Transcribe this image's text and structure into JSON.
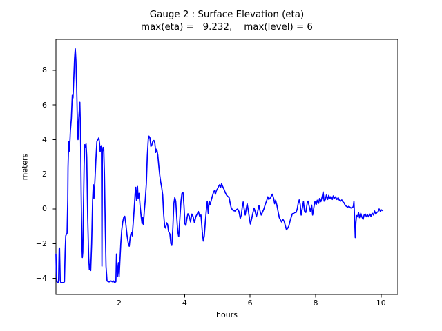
{
  "figure": {
    "title_line1": "Gauge 2 : Surface Elevation (eta)",
    "title_line2": "max(eta) =   9.232,    max(level) = 6",
    "xlabel": "hours",
    "ylabel": "meters"
  },
  "chart_data": {
    "type": "line",
    "title": "Gauge 2 : Surface Elevation (eta)",
    "subtitle": "max(eta) =   9.232,    max(level) = 6",
    "xlabel": "hours",
    "ylabel": "meters",
    "max_eta": 9.232,
    "max_level": 6,
    "line_color": "#0000ff",
    "line_width": 1.7,
    "background_color": "#ffffff",
    "grid": false,
    "legend": "none",
    "xlim": [
      0.07,
      10.51
    ],
    "ylim": [
      -4.93,
      9.78
    ],
    "xticks": [
      {
        "value": 2,
        "label": "2"
      },
      {
        "value": 4,
        "label": "4"
      },
      {
        "value": 6,
        "label": "6"
      },
      {
        "value": 8,
        "label": "8"
      },
      {
        "value": 10,
        "label": "10"
      }
    ],
    "yticks": [
      {
        "value": -4,
        "label": "−4"
      },
      {
        "value": -2,
        "label": "−2"
      },
      {
        "value": 0,
        "label": "0"
      },
      {
        "value": 2,
        "label": "2"
      },
      {
        "value": 4,
        "label": "4"
      },
      {
        "value": 6,
        "label": "6"
      },
      {
        "value": 8,
        "label": "8"
      }
    ],
    "points": [
      [
        0.07,
        -2.6
      ],
      [
        0.08,
        -3.6
      ],
      [
        0.1,
        -4.2
      ],
      [
        0.13,
        -4.25
      ],
      [
        0.15,
        -4.2
      ],
      [
        0.17,
        -2.3
      ],
      [
        0.18,
        -2.25
      ],
      [
        0.2,
        -4.1
      ],
      [
        0.22,
        -4.25
      ],
      [
        0.26,
        -4.25
      ],
      [
        0.3,
        -4.25
      ],
      [
        0.33,
        -4.2
      ],
      [
        0.35,
        -2.5
      ],
      [
        0.37,
        -1.55
      ],
      [
        0.39,
        -1.45
      ],
      [
        0.41,
        -1.4
      ],
      [
        0.43,
        0.5
      ],
      [
        0.44,
        2.4
      ],
      [
        0.46,
        3.9
      ],
      [
        0.47,
        3.3
      ],
      [
        0.49,
        3.6
      ],
      [
        0.51,
        4.5
      ],
      [
        0.54,
        5.2
      ],
      [
        0.57,
        6.55
      ],
      [
        0.59,
        6.4
      ],
      [
        0.62,
        7.8
      ],
      [
        0.64,
        8.7
      ],
      [
        0.66,
        9.232
      ],
      [
        0.68,
        8.6
      ],
      [
        0.7,
        7.2
      ],
      [
        0.71,
        6.5
      ],
      [
        0.73,
        4.5
      ],
      [
        0.745,
        4.0
      ],
      [
        0.76,
        5.0
      ],
      [
        0.78,
        5.6
      ],
      [
        0.8,
        6.15
      ],
      [
        0.82,
        4.5
      ],
      [
        0.84,
        1.0
      ],
      [
        0.86,
        -2.0
      ],
      [
        0.875,
        -2.8
      ],
      [
        0.89,
        -2.5
      ],
      [
        0.91,
        0.0
      ],
      [
        0.93,
        2.5
      ],
      [
        0.95,
        3.7
      ],
      [
        0.97,
        3.55
      ],
      [
        0.99,
        3.75
      ],
      [
        1.01,
        3.0
      ],
      [
        1.04,
        -0.5
      ],
      [
        1.07,
        -2.8
      ],
      [
        1.09,
        -3.5
      ],
      [
        1.11,
        -3.2
      ],
      [
        1.13,
        -3.55
      ],
      [
        1.16,
        -2.0
      ],
      [
        1.19,
        0.5
      ],
      [
        1.21,
        1.4
      ],
      [
        1.23,
        0.6
      ],
      [
        1.26,
        1.6
      ],
      [
        1.29,
        2.8
      ],
      [
        1.32,
        3.9
      ],
      [
        1.35,
        4.0
      ],
      [
        1.38,
        4.1
      ],
      [
        1.4,
        3.8
      ],
      [
        1.42,
        3.3
      ],
      [
        1.44,
        3.6
      ],
      [
        1.46,
        3.65
      ],
      [
        1.475,
        -3.3
      ],
      [
        1.49,
        3.3
      ],
      [
        1.51,
        3.55
      ],
      [
        1.53,
        3.45
      ],
      [
        1.55,
        2.0
      ],
      [
        1.575,
        -1.0
      ],
      [
        1.6,
        -3.3
      ],
      [
        1.63,
        -4.15
      ],
      [
        1.67,
        -4.2
      ],
      [
        1.71,
        -4.2
      ],
      [
        1.75,
        -4.15
      ],
      [
        1.79,
        -4.2
      ],
      [
        1.83,
        -4.15
      ],
      [
        1.86,
        -4.25
      ],
      [
        1.9,
        -4.2
      ],
      [
        1.92,
        -2.6
      ],
      [
        1.95,
        -3.9
      ],
      [
        1.98,
        -3.1
      ],
      [
        2.0,
        -3.9
      ],
      [
        2.02,
        -3.1
      ],
      [
        2.05,
        -2.0
      ],
      [
        2.08,
        -1.2
      ],
      [
        2.11,
        -0.75
      ],
      [
        2.14,
        -0.5
      ],
      [
        2.17,
        -0.42
      ],
      [
        2.2,
        -0.8
      ],
      [
        2.24,
        -1.5
      ],
      [
        2.28,
        -2.0
      ],
      [
        2.31,
        -2.15
      ],
      [
        2.34,
        -1.6
      ],
      [
        2.37,
        -1.35
      ],
      [
        2.4,
        -1.55
      ],
      [
        2.43,
        -0.8
      ],
      [
        2.46,
        0.0
      ],
      [
        2.49,
        0.9
      ],
      [
        2.51,
        1.25
      ],
      [
        2.53,
        0.5
      ],
      [
        2.56,
        1.3
      ],
      [
        2.58,
        0.6
      ],
      [
        2.61,
        0.9
      ],
      [
        2.64,
        0.15
      ],
      [
        2.67,
        -0.4
      ],
      [
        2.7,
        -0.85
      ],
      [
        2.72,
        -0.5
      ],
      [
        2.74,
        -0.9
      ],
      [
        2.77,
        -0.1
      ],
      [
        2.8,
        0.55
      ],
      [
        2.83,
        1.45
      ],
      [
        2.86,
        3.05
      ],
      [
        2.89,
        4.0
      ],
      [
        2.91,
        4.2
      ],
      [
        2.94,
        4.1
      ],
      [
        2.97,
        3.6
      ],
      [
        3.0,
        3.7
      ],
      [
        3.03,
        3.9
      ],
      [
        3.06,
        3.95
      ],
      [
        3.09,
        3.8
      ],
      [
        3.12,
        3.25
      ],
      [
        3.15,
        3.45
      ],
      [
        3.18,
        3.1
      ],
      [
        3.21,
        2.5
      ],
      [
        3.24,
        1.95
      ],
      [
        3.27,
        1.55
      ],
      [
        3.3,
        1.25
      ],
      [
        3.33,
        0.8
      ],
      [
        3.36,
        -0.3
      ],
      [
        3.39,
        -1.0
      ],
      [
        3.42,
        -1.1
      ],
      [
        3.45,
        -0.8
      ],
      [
        3.48,
        -0.9
      ],
      [
        3.51,
        -1.3
      ],
      [
        3.55,
        -1.45
      ],
      [
        3.58,
        -2.0
      ],
      [
        3.61,
        -2.1
      ],
      [
        3.64,
        -1.1
      ],
      [
        3.67,
        0.3
      ],
      [
        3.7,
        0.65
      ],
      [
        3.73,
        0.45
      ],
      [
        3.76,
        -0.5
      ],
      [
        3.79,
        -1.3
      ],
      [
        3.82,
        -1.6
      ],
      [
        3.85,
        -0.7
      ],
      [
        3.89,
        0.45
      ],
      [
        3.92,
        0.9
      ],
      [
        3.95,
        0.95
      ],
      [
        3.98,
        0.2
      ],
      [
        4.01,
        -0.85
      ],
      [
        4.04,
        -0.95
      ],
      [
        4.07,
        -0.55
      ],
      [
        4.1,
        -0.28
      ],
      [
        4.14,
        -0.4
      ],
      [
        4.18,
        -0.75
      ],
      [
        4.22,
        -0.3
      ],
      [
        4.26,
        -0.45
      ],
      [
        4.3,
        -0.8
      ],
      [
        4.34,
        -0.45
      ],
      [
        4.38,
        -0.3
      ],
      [
        4.42,
        -0.15
      ],
      [
        4.46,
        -0.42
      ],
      [
        4.5,
        -0.35
      ],
      [
        4.54,
        -1.3
      ],
      [
        4.57,
        -1.85
      ],
      [
        4.6,
        -1.55
      ],
      [
        4.63,
        -0.8
      ],
      [
        4.66,
        -0.15
      ],
      [
        4.69,
        0.45
      ],
      [
        4.72,
        -0.25
      ],
      [
        4.75,
        0.45
      ],
      [
        4.78,
        0.25
      ],
      [
        4.82,
        0.55
      ],
      [
        4.85,
        0.75
      ],
      [
        4.88,
        0.95
      ],
      [
        4.91,
        1.05
      ],
      [
        4.94,
        0.85
      ],
      [
        4.97,
        1.05
      ],
      [
        5.0,
        1.15
      ],
      [
        5.04,
        1.3
      ],
      [
        5.07,
        1.4
      ],
      [
        5.1,
        1.25
      ],
      [
        5.13,
        1.45
      ],
      [
        5.16,
        1.3
      ],
      [
        5.2,
        1.15
      ],
      [
        5.24,
        0.95
      ],
      [
        5.28,
        0.8
      ],
      [
        5.32,
        0.72
      ],
      [
        5.36,
        0.65
      ],
      [
        5.39,
        0.35
      ],
      [
        5.42,
        0.08
      ],
      [
        5.46,
        -0.05
      ],
      [
        5.5,
        -0.1
      ],
      [
        5.54,
        -0.12
      ],
      [
        5.58,
        -0.04
      ],
      [
        5.62,
        0.0
      ],
      [
        5.66,
        -0.15
      ],
      [
        5.7,
        -0.55
      ],
      [
        5.73,
        -0.35
      ],
      [
        5.76,
        0.1
      ],
      [
        5.79,
        0.4
      ],
      [
        5.82,
        0.0
      ],
      [
        5.85,
        -0.35
      ],
      [
        5.88,
        0.0
      ],
      [
        5.91,
        0.3
      ],
      [
        5.95,
        -0.15
      ],
      [
        5.98,
        -0.55
      ],
      [
        6.01,
        -0.87
      ],
      [
        6.05,
        -0.55
      ],
      [
        6.09,
        -0.2
      ],
      [
        6.12,
        0.05
      ],
      [
        6.16,
        -0.2
      ],
      [
        6.19,
        -0.45
      ],
      [
        6.23,
        -0.15
      ],
      [
        6.27,
        0.2
      ],
      [
        6.3,
        -0.1
      ],
      [
        6.34,
        -0.35
      ],
      [
        6.38,
        -0.18
      ],
      [
        6.42,
        0.0
      ],
      [
        6.46,
        0.25
      ],
      [
        6.5,
        0.45
      ],
      [
        6.54,
        0.7
      ],
      [
        6.57,
        0.55
      ],
      [
        6.61,
        0.62
      ],
      [
        6.65,
        0.75
      ],
      [
        6.68,
        0.85
      ],
      [
        6.72,
        0.6
      ],
      [
        6.75,
        0.3
      ],
      [
        6.78,
        0.5
      ],
      [
        6.82,
        0.2
      ],
      [
        6.86,
        -0.2
      ],
      [
        6.89,
        -0.5
      ],
      [
        6.93,
        -0.65
      ],
      [
        6.96,
        -0.75
      ],
      [
        7.0,
        -0.6
      ],
      [
        7.04,
        -0.72
      ],
      [
        7.08,
        -1.0
      ],
      [
        7.11,
        -1.2
      ],
      [
        7.15,
        -1.1
      ],
      [
        7.18,
        -1.0
      ],
      [
        7.22,
        -0.7
      ],
      [
        7.26,
        -0.45
      ],
      [
        7.29,
        -0.28
      ],
      [
        7.33,
        -0.25
      ],
      [
        7.37,
        -0.2
      ],
      [
        7.4,
        -0.22
      ],
      [
        7.44,
        0.0
      ],
      [
        7.47,
        0.35
      ],
      [
        7.5,
        0.52
      ],
      [
        7.53,
        0.25
      ],
      [
        7.56,
        -0.35
      ],
      [
        7.6,
        0.1
      ],
      [
        7.63,
        0.42
      ],
      [
        7.66,
        -0.12
      ],
      [
        7.7,
        -0.2
      ],
      [
        7.74,
        0.3
      ],
      [
        7.77,
        0.45
      ],
      [
        7.81,
        0.1
      ],
      [
        7.84,
        -0.15
      ],
      [
        7.88,
        0.22
      ],
      [
        7.91,
        -0.35
      ],
      [
        7.95,
        0.12
      ],
      [
        7.98,
        0.42
      ],
      [
        8.02,
        0.25
      ],
      [
        8.05,
        0.5
      ],
      [
        8.09,
        0.32
      ],
      [
        8.12,
        0.6
      ],
      [
        8.16,
        0.42
      ],
      [
        8.2,
        0.7
      ],
      [
        8.23,
        0.98
      ],
      [
        8.26,
        0.45
      ],
      [
        8.3,
        0.55
      ],
      [
        8.33,
        0.8
      ],
      [
        8.37,
        0.55
      ],
      [
        8.4,
        0.78
      ],
      [
        8.44,
        0.6
      ],
      [
        8.47,
        0.72
      ],
      [
        8.51,
        0.55
      ],
      [
        8.54,
        0.75
      ],
      [
        8.58,
        0.62
      ],
      [
        8.61,
        0.7
      ],
      [
        8.65,
        0.55
      ],
      [
        8.69,
        0.65
      ],
      [
        8.72,
        0.52
      ],
      [
        8.76,
        0.45
      ],
      [
        8.8,
        0.52
      ],
      [
        8.83,
        0.42
      ],
      [
        8.87,
        0.35
      ],
      [
        8.9,
        0.22
      ],
      [
        8.94,
        0.15
      ],
      [
        8.98,
        0.1
      ],
      [
        9.01,
        0.15
      ],
      [
        9.05,
        0.1
      ],
      [
        9.08,
        0.05
      ],
      [
        9.12,
        0.1
      ],
      [
        9.15,
        0.12
      ],
      [
        9.17,
        0.45
      ],
      [
        9.19,
        -0.5
      ],
      [
        9.21,
        -1.65
      ],
      [
        9.23,
        -0.8
      ],
      [
        9.25,
        -0.38
      ],
      [
        9.28,
        -0.45
      ],
      [
        9.31,
        -0.2
      ],
      [
        9.34,
        -0.5
      ],
      [
        9.38,
        -0.25
      ],
      [
        9.41,
        -0.45
      ],
      [
        9.45,
        -0.6
      ],
      [
        9.48,
        -0.35
      ],
      [
        9.52,
        -0.3
      ],
      [
        9.55,
        -0.45
      ],
      [
        9.59,
        -0.35
      ],
      [
        9.62,
        -0.45
      ],
      [
        9.66,
        -0.3
      ],
      [
        9.69,
        -0.42
      ],
      [
        9.73,
        -0.25
      ],
      [
        9.77,
        -0.35
      ],
      [
        9.8,
        -0.12
      ],
      [
        9.84,
        -0.3
      ],
      [
        9.87,
        -0.2
      ],
      [
        9.91,
        -0.15
      ],
      [
        9.94,
        0.0
      ],
      [
        9.98,
        -0.15
      ],
      [
        10.01,
        -0.05
      ],
      [
        10.05,
        -0.1
      ]
    ]
  }
}
